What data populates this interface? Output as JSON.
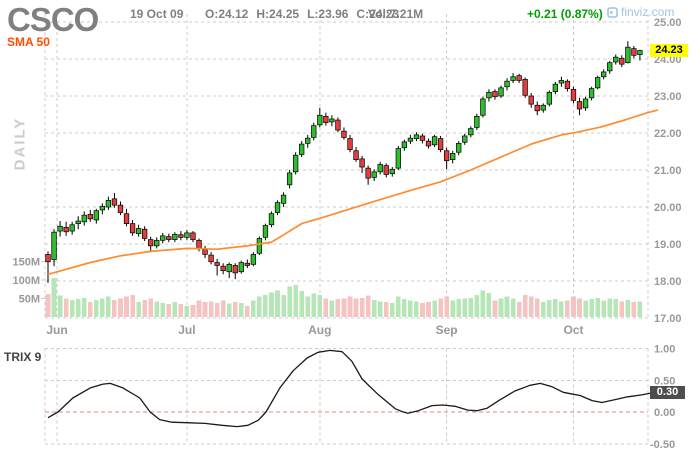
{
  "header": {
    "ticker": "CSCO",
    "date": "19 Oct 09",
    "open": "O:24.12",
    "high": "H:24.25",
    "low": "L:23.96",
    "close": "C:24.23",
    "volume": "Vol:7.21M",
    "change": "+0.21 (0.87%)",
    "brand": "finviz.com"
  },
  "labels": {
    "sma": "SMA 50",
    "watermark": "DAILY",
    "trix": "TRIX 9"
  },
  "badges": {
    "price": "24.23",
    "trix": "0.30"
  },
  "colors": {
    "up": "#2DBE2D",
    "down": "#E33E3E",
    "candle_outline": "#000000",
    "vol_up": "#B5E6B5",
    "vol_down": "#F6C3C3",
    "sma": "#FF8B2D",
    "trix": "#1A1A1A",
    "zero_line": "#F08080",
    "grid": "#CCCCCC",
    "axis_text": "#999999",
    "header_text": "#808080",
    "change_text": "#00A000",
    "sma_label": "#FF4D00",
    "watermark": "#CCCCCC",
    "brand": "#9FC4E5",
    "badge_price_bg": "#FFFF00",
    "badge_trix_bg": "#4D4D4D"
  },
  "chart_data": {
    "type": "candlestick",
    "title": "CSCO daily candlestick chart with SMA 50, volume and TRIX 9",
    "price_axis": {
      "min": 17,
      "max": 25,
      "ticks": [
        {
          "value": 25,
          "label": "25.00"
        },
        {
          "value": 24,
          "label": "24.00"
        },
        {
          "value": 23,
          "label": "23.00"
        },
        {
          "value": 22,
          "label": "22.00"
        },
        {
          "value": 21,
          "label": "21.00"
        },
        {
          "value": 20,
          "label": "20.00"
        },
        {
          "value": 19,
          "label": "19.00"
        },
        {
          "value": 18,
          "label": "18.00"
        },
        {
          "value": 17,
          "label": "17.00"
        }
      ]
    },
    "volume_axis": {
      "unit": "M",
      "ticks": [
        {
          "value": 150,
          "label": "150M"
        },
        {
          "value": 100,
          "label": "100M"
        },
        {
          "value": 50,
          "label": "50M"
        }
      ]
    },
    "trix_axis": {
      "min": -0.5,
      "max": 1.0,
      "ticks": [
        {
          "value": 1.0,
          "label": "1.00"
        },
        {
          "value": 0.5,
          "label": "0.50"
        },
        {
          "value": 0.0,
          "label": "0.00"
        },
        {
          "value": -0.5,
          "label": "-0.50"
        }
      ]
    },
    "months": [
      {
        "label": "Jun",
        "index": 1.5
      },
      {
        "label": "Jul",
        "index": 23
      },
      {
        "label": "Aug",
        "index": 45
      },
      {
        "label": "Sep",
        "index": 66
      },
      {
        "label": "Oct",
        "index": 87
      }
    ],
    "last_price": 24.23,
    "last_trix": 0.3,
    "candles": [
      [
        18.72,
        18.8,
        17.95,
        18.52,
        62
      ],
      [
        18.58,
        19.4,
        18.4,
        19.32,
        105
      ],
      [
        19.35,
        19.62,
        19.2,
        19.48,
        58
      ],
      [
        19.45,
        19.6,
        19.22,
        19.33,
        50
      ],
      [
        19.35,
        19.6,
        19.25,
        19.52,
        46
      ],
      [
        19.55,
        19.75,
        19.4,
        19.62,
        48
      ],
      [
        19.6,
        19.88,
        19.5,
        19.78,
        52
      ],
      [
        19.8,
        19.92,
        19.6,
        19.68,
        40
      ],
      [
        19.65,
        19.95,
        19.55,
        19.9,
        46
      ],
      [
        19.92,
        20.1,
        19.8,
        20.02,
        50
      ],
      [
        20.0,
        20.28,
        19.92,
        20.18,
        55
      ],
      [
        20.22,
        20.38,
        19.98,
        20.05,
        46
      ],
      [
        20.05,
        20.15,
        19.78,
        19.85,
        50
      ],
      [
        19.82,
        19.95,
        19.48,
        19.55,
        56
      ],
      [
        19.55,
        19.65,
        19.22,
        19.3,
        60
      ],
      [
        19.28,
        19.52,
        19.2,
        19.42,
        40
      ],
      [
        19.4,
        19.48,
        19.08,
        19.15,
        46
      ],
      [
        19.12,
        19.2,
        18.78,
        18.95,
        50
      ],
      [
        18.95,
        19.18,
        18.88,
        19.1,
        42
      ],
      [
        19.1,
        19.3,
        19.02,
        19.22,
        38
      ],
      [
        19.2,
        19.28,
        19.05,
        19.12,
        35
      ],
      [
        19.12,
        19.32,
        19.05,
        19.26,
        40
      ],
      [
        19.25,
        19.35,
        19.1,
        19.18,
        35
      ],
      [
        19.18,
        19.38,
        19.1,
        19.3,
        30
      ],
      [
        19.3,
        19.35,
        19.05,
        19.12,
        33
      ],
      [
        19.1,
        19.15,
        18.8,
        18.88,
        45
      ],
      [
        18.85,
        18.95,
        18.62,
        18.72,
        40
      ],
      [
        18.7,
        18.78,
        18.45,
        18.52,
        42
      ],
      [
        18.5,
        18.6,
        18.15,
        18.42,
        38
      ],
      [
        18.4,
        18.48,
        18.18,
        18.28,
        45
      ],
      [
        18.25,
        18.5,
        18.08,
        18.45,
        36
      ],
      [
        18.42,
        18.48,
        18.05,
        18.22,
        40
      ],
      [
        18.25,
        18.55,
        18.2,
        18.5,
        38
      ],
      [
        18.48,
        18.58,
        18.35,
        18.42,
        30
      ],
      [
        18.45,
        18.78,
        18.4,
        18.72,
        45
      ],
      [
        18.75,
        19.2,
        18.7,
        19.15,
        55
      ],
      [
        19.18,
        19.55,
        19.1,
        19.5,
        60
      ],
      [
        19.52,
        19.88,
        19.45,
        19.82,
        66
      ],
      [
        19.85,
        20.18,
        19.78,
        20.12,
        72
      ],
      [
        20.1,
        20.4,
        20.0,
        20.32,
        60
      ],
      [
        20.6,
        21.0,
        20.5,
        20.92,
        82
      ],
      [
        20.95,
        21.48,
        20.88,
        21.4,
        86
      ],
      [
        21.42,
        21.78,
        21.35,
        21.7,
        70
      ],
      [
        21.72,
        21.95,
        21.6,
        21.86,
        56
      ],
      [
        21.88,
        22.28,
        21.8,
        22.2,
        64
      ],
      [
        22.22,
        22.68,
        22.15,
        22.48,
        60
      ],
      [
        22.45,
        22.55,
        22.2,
        22.28,
        50
      ],
      [
        22.3,
        22.48,
        22.18,
        22.38,
        45
      ],
      [
        22.35,
        22.42,
        22.02,
        22.08,
        48
      ],
      [
        22.05,
        22.15,
        21.82,
        21.88,
        50
      ],
      [
        21.85,
        21.95,
        21.48,
        21.55,
        55
      ],
      [
        21.52,
        21.62,
        21.22,
        21.28,
        50
      ],
      [
        21.3,
        21.38,
        20.92,
        21.08,
        52
      ],
      [
        21.05,
        21.12,
        20.6,
        20.78,
        58
      ],
      [
        20.8,
        21.02,
        20.7,
        20.95,
        46
      ],
      [
        20.95,
        21.22,
        20.88,
        21.15,
        42
      ],
      [
        21.12,
        21.18,
        20.8,
        20.88,
        40
      ],
      [
        20.9,
        21.08,
        20.82,
        21.02,
        38
      ],
      [
        21.05,
        21.65,
        21.0,
        21.58,
        56
      ],
      [
        21.6,
        21.82,
        21.52,
        21.76,
        48
      ],
      [
        21.78,
        21.95,
        21.7,
        21.86,
        44
      ],
      [
        21.85,
        22.02,
        21.78,
        21.95,
        42
      ],
      [
        21.92,
        21.98,
        21.72,
        21.8,
        38
      ],
      [
        21.78,
        21.85,
        21.58,
        21.65,
        40
      ],
      [
        21.68,
        21.95,
        21.62,
        21.9,
        44
      ],
      [
        21.85,
        21.92,
        21.48,
        21.55,
        50
      ],
      [
        21.52,
        21.6,
        21.02,
        21.25,
        56
      ],
      [
        21.28,
        21.52,
        21.18,
        21.45,
        45
      ],
      [
        21.48,
        21.78,
        21.4,
        21.72,
        48
      ],
      [
        21.75,
        21.98,
        21.68,
        21.92,
        50
      ],
      [
        21.95,
        22.18,
        21.88,
        22.12,
        52
      ],
      [
        22.15,
        22.52,
        22.08,
        22.45,
        60
      ],
      [
        22.48,
        22.98,
        22.42,
        22.92,
        72
      ],
      [
        22.95,
        23.18,
        22.85,
        23.1,
        65
      ],
      [
        23.12,
        23.18,
        22.9,
        22.98,
        45
      ],
      [
        23.0,
        23.28,
        22.95,
        23.22,
        50
      ],
      [
        23.25,
        23.48,
        23.15,
        23.4,
        55
      ],
      [
        23.42,
        23.62,
        23.35,
        23.52,
        50
      ],
      [
        23.55,
        23.6,
        23.35,
        23.42,
        40
      ],
      [
        23.45,
        23.5,
        22.95,
        23.02,
        60
      ],
      [
        23.0,
        23.08,
        22.68,
        22.78,
        55
      ],
      [
        22.75,
        22.85,
        22.48,
        22.6,
        50
      ],
      [
        22.62,
        22.8,
        22.55,
        22.75,
        40
      ],
      [
        22.78,
        23.15,
        22.72,
        23.1,
        46
      ],
      [
        23.12,
        23.38,
        23.05,
        23.32,
        48
      ],
      [
        23.35,
        23.52,
        23.25,
        23.42,
        42
      ],
      [
        23.4,
        23.45,
        23.12,
        23.2,
        45
      ],
      [
        23.18,
        23.25,
        22.8,
        22.88,
        55
      ],
      [
        22.85,
        22.95,
        22.48,
        22.65,
        50
      ],
      [
        22.68,
        22.98,
        22.6,
        22.92,
        45
      ],
      [
        22.95,
        23.25,
        22.88,
        23.2,
        48
      ],
      [
        23.22,
        23.55,
        23.18,
        23.5,
        52
      ],
      [
        23.52,
        23.72,
        23.45,
        23.65,
        45
      ],
      [
        23.68,
        23.95,
        23.6,
        23.9,
        50
      ],
      [
        23.92,
        24.12,
        23.85,
        24.05,
        48
      ],
      [
        24.02,
        24.1,
        23.78,
        23.86,
        42
      ],
      [
        23.9,
        24.48,
        23.88,
        24.32,
        46
      ],
      [
        24.28,
        24.35,
        24.02,
        24.1,
        40
      ],
      [
        24.12,
        24.25,
        23.96,
        24.23,
        42
      ]
    ],
    "sma50": [
      [
        0,
        18.18
      ],
      [
        1.5,
        18.25
      ],
      [
        7,
        18.5
      ],
      [
        12,
        18.68
      ],
      [
        17,
        18.8
      ],
      [
        23,
        18.88
      ],
      [
        28,
        18.86
      ],
      [
        33,
        18.95
      ],
      [
        37,
        19.05
      ],
      [
        39,
        19.25
      ],
      [
        42,
        19.55
      ],
      [
        45.5,
        19.72
      ],
      [
        50,
        19.95
      ],
      [
        55,
        20.2
      ],
      [
        60,
        20.45
      ],
      [
        65,
        20.68
      ],
      [
        70,
        21.0
      ],
      [
        75,
        21.35
      ],
      [
        80,
        21.7
      ],
      [
        85,
        21.95
      ],
      [
        87.5,
        22.02
      ],
      [
        91.5,
        22.16
      ],
      [
        95.5,
        22.35
      ],
      [
        99.3,
        22.55
      ],
      [
        101,
        22.62
      ]
    ],
    "trix": [
      [
        0,
        -0.09
      ],
      [
        1.65,
        0.0
      ],
      [
        4.1,
        0.22
      ],
      [
        7,
        0.38
      ],
      [
        9.1,
        0.44
      ],
      [
        10.3,
        0.45
      ],
      [
        12.4,
        0.38
      ],
      [
        15.2,
        0.22
      ],
      [
        16.9,
        0.0
      ],
      [
        18.5,
        -0.12
      ],
      [
        20.5,
        -0.16
      ],
      [
        23.5,
        -0.17
      ],
      [
        26,
        -0.18
      ],
      [
        28.8,
        -0.21
      ],
      [
        31.3,
        -0.23
      ],
      [
        33.1,
        -0.21
      ],
      [
        34.8,
        -0.13
      ],
      [
        36.1,
        0.0
      ],
      [
        38.4,
        0.38
      ],
      [
        40.6,
        0.65
      ],
      [
        42.9,
        0.85
      ],
      [
        44.7,
        0.94
      ],
      [
        46.7,
        0.97
      ],
      [
        48.7,
        0.95
      ],
      [
        50.3,
        0.8
      ],
      [
        52,
        0.52
      ],
      [
        53.3,
        0.4
      ],
      [
        54.6,
        0.28
      ],
      [
        57.5,
        0.05
      ],
      [
        58.8,
        0.0
      ],
      [
        59.6,
        -0.02
      ],
      [
        61.3,
        0.02
      ],
      [
        63.6,
        0.1
      ],
      [
        65.4,
        0.11
      ],
      [
        67.4,
        0.09
      ],
      [
        69.5,
        0.03
      ],
      [
        71,
        0.02
      ],
      [
        72.7,
        0.06
      ],
      [
        74.8,
        0.19
      ],
      [
        77.3,
        0.33
      ],
      [
        79.8,
        0.42
      ],
      [
        81.5,
        0.45
      ],
      [
        83.4,
        0.4
      ],
      [
        85.3,
        0.31
      ],
      [
        86.9,
        0.28
      ],
      [
        88.1,
        0.26
      ],
      [
        90.1,
        0.18
      ],
      [
        91.7,
        0.15
      ],
      [
        93.7,
        0.19
      ],
      [
        96,
        0.24
      ],
      [
        98.3,
        0.27
      ],
      [
        100,
        0.3
      ]
    ]
  }
}
